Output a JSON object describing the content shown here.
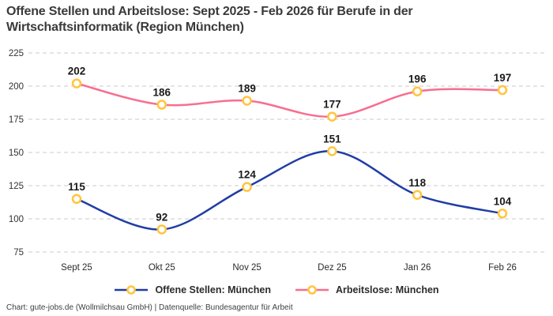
{
  "page": {
    "title_line1": "Offene Stellen und Arbeitslose: Sept 2025 - Feb 2026 für Berufe in der",
    "title_line2": "Wirtschaftsinformatik (Region München)",
    "footer": "Chart: gute-jobs.de (Wollmilchsau GmbH) | Datenquelle: Bundesagentur für Arbeit"
  },
  "colors": {
    "grid": "#cbcbcb",
    "axis_text": "#333333",
    "data_label": "#1a1a1a",
    "marker_stroke": "#ffc53d",
    "marker_fill": "#ffffff"
  },
  "chart_data": {
    "type": "line",
    "title": "Offene Stellen und Arbeitslose: Sept 2025 - Feb 2026 für Berufe in der Wirtschaftsinformatik (Region München)",
    "categories": [
      "Sept 25",
      "Okt 25",
      "Nov 25",
      "Dez 25",
      "Jan 26",
      "Feb 26"
    ],
    "series": [
      {
        "name": "Offene Stellen: München",
        "values": [
          115,
          92,
          124,
          151,
          118,
          104
        ],
        "color": "#203da5"
      },
      {
        "name": "Arbeitslose: München",
        "values": [
          202,
          186,
          189,
          177,
          196,
          197
        ],
        "color": "#f76e8f"
      }
    ],
    "yticks": [
      75,
      100,
      125,
      150,
      175,
      200,
      225
    ],
    "ylim": [
      75,
      225
    ],
    "xlabel": "",
    "ylabel": "",
    "grid": "horizontal-dashed",
    "legend_position": "bottom",
    "line_style": "smooth",
    "marker": "ring"
  }
}
